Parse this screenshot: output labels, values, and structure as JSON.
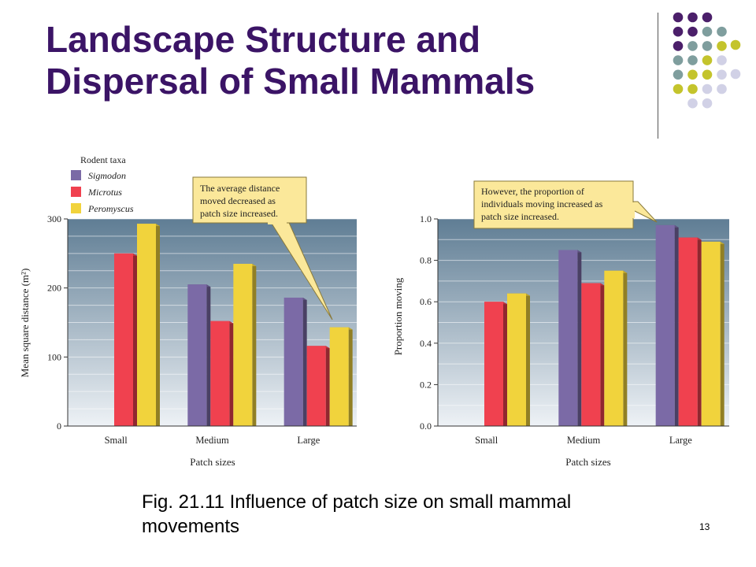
{
  "slide": {
    "title_line1": "Landscape Structure and",
    "title_line2": "Dispersal of Small Mammals",
    "caption_line1": "Fig. 21.11 Influence of patch size on small mammal",
    "caption_line2": "movements",
    "page_number": "13"
  },
  "legend": {
    "title": "Rodent taxa",
    "items": [
      {
        "name": "Sigmodon",
        "color": "#7b6aa6"
      },
      {
        "name": "Microtus",
        "color": "#f0414f"
      },
      {
        "name": "Peromyscus",
        "color": "#f1d33c"
      }
    ]
  },
  "colors": {
    "title": "#3b1466",
    "dot_purple": "#4b1f6a",
    "dot_teal": "#7f9e9e",
    "dot_olive": "#c4c42c",
    "dot_lavender": "#d1d1e6",
    "callout_fill": "#fbe89a",
    "plot_top": "#5f7d94",
    "plot_bottom": "#eef2f6"
  },
  "chart_data": [
    {
      "type": "bar",
      "categories": [
        "Small",
        "Medium",
        "Large"
      ],
      "series": [
        {
          "name": "Sigmodon",
          "values": [
            null,
            205,
            186
          ]
        },
        {
          "name": "Microtus",
          "values": [
            250,
            152,
            116
          ]
        },
        {
          "name": "Peromyscus",
          "values": [
            293,
            235,
            143
          ]
        }
      ],
      "xlabel": "Patch sizes",
      "ylabel": "Mean square distance (m²)",
      "ylim": [
        0,
        300
      ],
      "yticks": [
        "0",
        "100",
        "200",
        "300"
      ],
      "grid": true,
      "annotation": {
        "lines": [
          "The average distance",
          "moved decreased as",
          "patch size increased."
        ],
        "points_to": "Large / Peromyscus"
      }
    },
    {
      "type": "bar",
      "categories": [
        "Small",
        "Medium",
        "Large"
      ],
      "series": [
        {
          "name": "Sigmodon",
          "values": [
            null,
            0.85,
            0.97
          ]
        },
        {
          "name": "Microtus",
          "values": [
            0.6,
            0.69,
            0.91
          ]
        },
        {
          "name": "Peromyscus",
          "values": [
            0.64,
            0.75,
            0.89
          ]
        }
      ],
      "xlabel": "Patch sizes",
      "ylabel": "Proportion moving",
      "ylim": [
        0,
        1.0
      ],
      "yticks": [
        "0.0",
        "0.2",
        "0.4",
        "0.6",
        "0.8",
        "1.0"
      ],
      "grid": true,
      "annotation": {
        "lines": [
          "However, the proportion of",
          "individuals moving increased as",
          "patch size increased."
        ],
        "points_to": "Large / Sigmodon"
      }
    }
  ]
}
